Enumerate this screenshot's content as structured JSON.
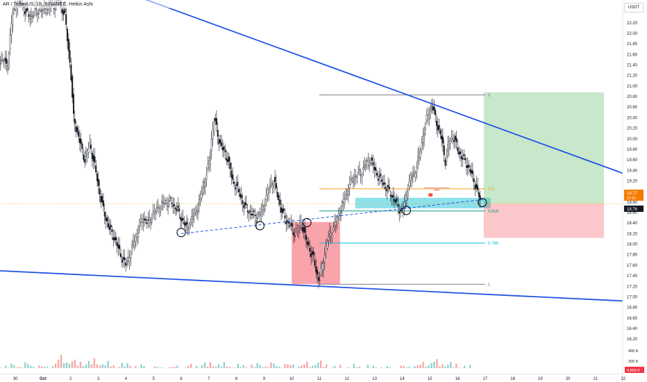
{
  "header": {
    "title": "AR / TetherUS, 1h, BINANCE, Heikin Ashi",
    "currency": "USDT"
  },
  "chart_data": {
    "type": "candlestick",
    "title": "",
    "xlabel": "",
    "ylabel": "",
    "ylim": [
      15.92,
      22.52
    ],
    "grid": false,
    "x_ticks": [
      {
        "label": "30",
        "day": -1
      },
      {
        "label": "Oct",
        "day": 0
      },
      {
        "label": "2",
        "day": 1
      },
      {
        "label": "3",
        "day": 2
      },
      {
        "label": "4",
        "day": 3
      },
      {
        "label": "5",
        "day": 4
      },
      {
        "label": "6",
        "day": 5
      },
      {
        "label": "7",
        "day": 6
      },
      {
        "label": "8",
        "day": 7
      },
      {
        "label": "9",
        "day": 8
      },
      {
        "label": "10",
        "day": 9
      },
      {
        "label": "11",
        "day": 10
      },
      {
        "label": "12",
        "day": 11
      },
      {
        "label": "13",
        "day": 12
      },
      {
        "label": "14",
        "day": 13
      },
      {
        "label": "15",
        "day": 14
      },
      {
        "label": "16",
        "day": 15
      },
      {
        "label": "17",
        "day": 16
      },
      {
        "label": "18",
        "day": 17
      },
      {
        "label": "19",
        "day": 18
      },
      {
        "label": "20",
        "day": 19
      },
      {
        "label": "21",
        "day": 20
      },
      {
        "label": "22",
        "day": 21
      }
    ],
    "y_ticks": [
      "16.20",
      "16.40",
      "16.60",
      "16.80",
      "17.00",
      "17.20",
      "17.40",
      "17.60",
      "17.80",
      "18.00",
      "18.20",
      "18.40",
      "18.60",
      "18.80",
      "19.00",
      "19.20",
      "19.40",
      "19.60",
      "19.80",
      "20.00",
      "20.20",
      "20.40",
      "20.60",
      "20.80",
      "21.00",
      "21.20",
      "21.40",
      "21.60",
      "21.80",
      "22.00",
      "22.20"
    ],
    "price_labels": {
      "current": "18.77",
      "countdown": "37:15",
      "previous": "18.76",
      "current_value": 18.77
    },
    "volume_labels": [
      "400 K",
      "200 K",
      "4.866 K"
    ],
    "price_path": [
      [
        -1.4,
        21.5
      ],
      [
        -1.3,
        21.3
      ],
      [
        -1.2,
        21.9
      ],
      [
        -1.1,
        22.4
      ],
      [
        -0.9,
        22.6
      ],
      [
        -0.7,
        22.5
      ],
      [
        -0.5,
        22.3
      ],
      [
        -0.3,
        22.4
      ],
      [
        0.3,
        22.5
      ],
      [
        0.6,
        22.6
      ],
      [
        0.8,
        22.3
      ],
      [
        1.0,
        21.3
      ],
      [
        1.1,
        20.4
      ],
      [
        1.3,
        20.0
      ],
      [
        1.5,
        19.6
      ],
      [
        1.7,
        19.9
      ],
      [
        1.9,
        19.4
      ],
      [
        2.0,
        19.1
      ],
      [
        2.2,
        18.6
      ],
      [
        2.4,
        18.3
      ],
      [
        2.6,
        18.1
      ],
      [
        2.8,
        17.8
      ],
      [
        3.0,
        17.6
      ],
      [
        3.2,
        17.9
      ],
      [
        3.4,
        18.2
      ],
      [
        3.6,
        18.5
      ],
      [
        3.8,
        18.4
      ],
      [
        4.0,
        18.6
      ],
      [
        4.2,
        18.7
      ],
      [
        4.4,
        18.8
      ],
      [
        4.6,
        18.8
      ],
      [
        4.8,
        18.7
      ],
      [
        5.0,
        18.5
      ],
      [
        5.2,
        18.3
      ],
      [
        5.4,
        18.5
      ],
      [
        5.6,
        18.7
      ],
      [
        5.8,
        19.1
      ],
      [
        6.0,
        19.5
      ],
      [
        6.1,
        20.0
      ],
      [
        6.2,
        20.4
      ],
      [
        6.35,
        20.0
      ],
      [
        6.5,
        19.8
      ],
      [
        6.7,
        19.6
      ],
      [
        6.85,
        19.2
      ],
      [
        7.0,
        19.1
      ],
      [
        7.15,
        18.9
      ],
      [
        7.3,
        18.7
      ],
      [
        7.5,
        18.6
      ],
      [
        7.7,
        18.5
      ],
      [
        7.9,
        18.6
      ],
      [
        8.05,
        18.85
      ],
      [
        8.2,
        19.1
      ],
      [
        8.35,
        19.2
      ],
      [
        8.5,
        18.9
      ],
      [
        8.65,
        18.6
      ],
      [
        8.8,
        18.45
      ],
      [
        8.95,
        18.35
      ],
      [
        9.1,
        18.2
      ],
      [
        9.25,
        18.3
      ],
      [
        9.35,
        18.42
      ],
      [
        9.5,
        18.1
      ],
      [
        9.65,
        17.9
      ],
      [
        9.8,
        17.7
      ],
      [
        9.9,
        17.45
      ],
      [
        10.0,
        17.3
      ],
      [
        10.15,
        17.7
      ],
      [
        10.3,
        18.1
      ],
      [
        10.5,
        18.3
      ],
      [
        10.7,
        18.55
      ],
      [
        10.9,
        18.85
      ],
      [
        11.1,
        19.15
      ],
      [
        11.3,
        19.3
      ],
      [
        11.5,
        19.35
      ],
      [
        11.65,
        19.5
      ],
      [
        11.85,
        19.6
      ],
      [
        12.05,
        19.35
      ],
      [
        12.25,
        19.2
      ],
      [
        12.45,
        19.05
      ],
      [
        12.65,
        18.9
      ],
      [
        12.85,
        18.7
      ],
      [
        13.0,
        18.6
      ],
      [
        13.15,
        18.95
      ],
      [
        13.3,
        19.25
      ],
      [
        13.45,
        19.35
      ],
      [
        13.6,
        19.65
      ],
      [
        13.75,
        20.05
      ],
      [
        13.9,
        20.4
      ],
      [
        14.05,
        20.65
      ],
      [
        14.15,
        20.5
      ],
      [
        14.3,
        20.2
      ],
      [
        14.45,
        19.95
      ],
      [
        14.55,
        19.55
      ],
      [
        14.7,
        19.95
      ],
      [
        14.85,
        20.05
      ],
      [
        15.0,
        19.8
      ],
      [
        15.15,
        19.65
      ],
      [
        15.3,
        19.55
      ],
      [
        15.45,
        19.4
      ],
      [
        15.6,
        19.2
      ],
      [
        15.75,
        18.95
      ],
      [
        15.85,
        18.77
      ]
    ],
    "volume_path": [
      [
        -1.4,
        0.45
      ],
      [
        -0.6,
        0.55
      ],
      [
        0.2,
        0.35
      ],
      [
        0.7,
        1.0
      ],
      [
        1.2,
        0.65
      ],
      [
        2.0,
        0.75
      ],
      [
        2.5,
        0.5
      ],
      [
        3.0,
        0.55
      ],
      [
        4.0,
        0.35
      ],
      [
        5.0,
        0.4
      ],
      [
        6.1,
        0.6
      ],
      [
        7.0,
        0.45
      ],
      [
        8.2,
        0.55
      ],
      [
        9.3,
        0.5
      ],
      [
        9.9,
        0.7
      ],
      [
        10.5,
        0.4
      ],
      [
        11.5,
        0.45
      ],
      [
        12.5,
        0.35
      ],
      [
        13.5,
        0.45
      ],
      [
        14.0,
        0.75
      ],
      [
        14.6,
        0.6
      ],
      [
        15.2,
        0.45
      ],
      [
        15.85,
        0.3
      ]
    ],
    "trendlines": [
      {
        "color": "#1e53e5",
        "style": "solid",
        "from": [
          3.4,
          22.7
        ],
        "to": [
          21.9,
          19.17
        ]
      },
      {
        "color": "#1e53e5",
        "style": "solid",
        "from": [
          -1.75,
          17.5
        ],
        "to": [
          21.9,
          16.9
        ]
      },
      {
        "color": "#1e53e5",
        "style": "dashed",
        "from": [
          5.0,
          18.2
        ],
        "to": [
          16.0,
          18.85
        ]
      }
    ],
    "fibonacci": {
      "day_from": 10.0,
      "day_to": 16.0,
      "levels": [
        {
          "label": "0",
          "price": 20.83,
          "color": "#787b86"
        },
        {
          "label": "0.5",
          "price": 19.05,
          "color": "#f59d1a"
        },
        {
          "label": "0.618",
          "price": 18.63,
          "color": "#089981"
        },
        {
          "label": "0.786",
          "price": 18.02,
          "color": "#00bcd4"
        },
        {
          "label": "1",
          "price": 17.24,
          "color": "#787b86"
        }
      ]
    },
    "position": {
      "day_from": 15.95,
      "day_to": 20.3,
      "entry": 18.77,
      "target": 20.88,
      "stop": 18.12
    },
    "zones": [
      {
        "color": "#f23645",
        "opacity": 0.45,
        "day_from": 9.0,
        "day_to": 10.75,
        "top": 18.42,
        "bottom": 17.24
      },
      {
        "color": "#00bcd4",
        "opacity": 0.45,
        "day_from": 11.3,
        "day_to": 16.2,
        "top": 18.88,
        "bottom": 18.68
      }
    ],
    "circles": [
      {
        "day": 5.0,
        "price": 18.22
      },
      {
        "day": 7.85,
        "price": 18.35
      },
      {
        "day": 9.55,
        "price": 18.41
      },
      {
        "day": 13.15,
        "price": 18.64
      },
      {
        "day": 15.9,
        "price": 18.79
      }
    ],
    "annotations": [
      {
        "text": "155",
        "day": 14.25,
        "price": 19.06
      }
    ]
  }
}
